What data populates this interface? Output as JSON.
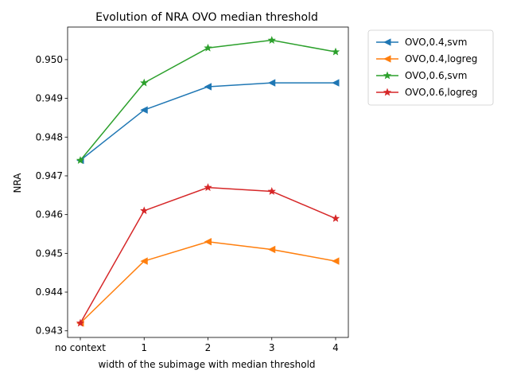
{
  "chart_data": {
    "type": "line",
    "title": "Evolution of NRA OVO median threshold",
    "xlabel": "width of the subimage with median threshold",
    "ylabel": "NRA",
    "categories": [
      "no context",
      "1",
      "2",
      "3",
      "4"
    ],
    "ylim": [
      0.94283,
      0.95084
    ],
    "yticks": [
      0.943,
      0.944,
      0.945,
      0.946,
      0.947,
      0.948,
      0.949,
      0.95
    ],
    "ytick_labels": [
      "0.943",
      "0.944",
      "0.945",
      "0.946",
      "0.947",
      "0.948",
      "0.949",
      "0.950"
    ],
    "grid": false,
    "legend_position": "outside-top-right",
    "series": [
      {
        "name": "OVO,0.4,svm",
        "color": "#1f77b4",
        "marker": "triangle-left",
        "values": [
          0.9474,
          0.9487,
          0.9493,
          0.9494,
          0.9494
        ]
      },
      {
        "name": "OVO,0.4,logreg",
        "color": "#ff7f0e",
        "marker": "triangle-left",
        "values": [
          0.9432,
          0.9448,
          0.9453,
          0.9451,
          0.9448
        ]
      },
      {
        "name": "OVO,0.6,svm",
        "color": "#2ca02c",
        "marker": "star",
        "values": [
          0.9474,
          0.9494,
          0.9503,
          0.9505,
          0.9502
        ]
      },
      {
        "name": "OVO,0.6,logreg",
        "color": "#d62728",
        "marker": "star",
        "values": [
          0.9432,
          0.9461,
          0.9467,
          0.9466,
          0.9459
        ]
      }
    ]
  }
}
